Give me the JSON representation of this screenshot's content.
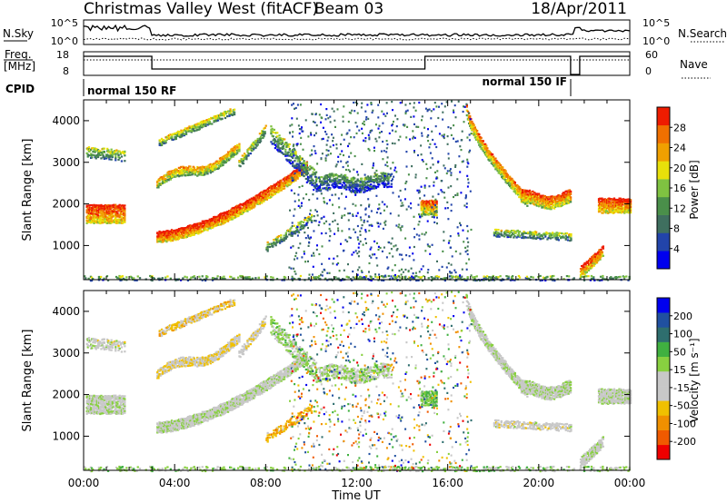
{
  "header": {
    "title": "Christmas Valley West (fitACF)",
    "beam": "Beam 03",
    "date": "18/Apr/2011"
  },
  "noise_panel": {
    "left_label": "N.Sky",
    "right_label": "N.Search",
    "left_ticks": [
      "10^5",
      "10^0"
    ],
    "right_ticks": [
      "10^5",
      "10^0"
    ]
  },
  "freq_panel": {
    "left_label_1": "Freq.",
    "left_label_2": "[MHz]",
    "right_label": "Nave",
    "left_ticks": [
      "18",
      "8"
    ],
    "right_ticks": [
      "60",
      "0"
    ]
  },
  "cpid": {
    "label": "CPID",
    "modes": [
      "normal 150 RF",
      "normal 150 IF"
    ]
  },
  "colorbars": {
    "power": {
      "title": "Power [dB]",
      "colors": [
        "#0000ee",
        "#2244aa",
        "#3f6f5f",
        "#4a8f4a",
        "#7fc241",
        "#e8e00a",
        "#f0a000",
        "#f07000",
        "#ee1c00"
      ],
      "ticks": [
        "4",
        "8",
        "12",
        "16",
        "20",
        "24",
        "28"
      ]
    },
    "velocity": {
      "title": "Velocity [m s⁻¹]",
      "colors": [
        "#ee0000",
        "#f05a00",
        "#f09000",
        "#f0c000",
        "#c8c8c8",
        "#c8c8c8",
        "#88d040",
        "#40b040",
        "#2e6e6e",
        "#2050a0",
        "#0000ee"
      ],
      "ticks": [
        "-200",
        "-100",
        "-50",
        "-15",
        "15",
        "50",
        "100",
        "200"
      ]
    }
  },
  "chart_data": [
    {
      "type": "heatmap",
      "name": "power",
      "xlabel": "",
      "ylabel": "Slant Range [km]",
      "xlim": [
        "00:00",
        "24:00"
      ],
      "ylim": [
        180,
        4500
      ],
      "x_ticks": [
        "00:00",
        "04:00",
        "08:00",
        "12:00",
        "16:00",
        "20:00",
        "00:00"
      ],
      "y_ticks": [
        1000,
        2000,
        3000,
        4000
      ],
      "color_scale_db": [
        0,
        32
      ]
    },
    {
      "type": "heatmap",
      "name": "velocity",
      "xlabel": "Time UT",
      "ylabel": "Slant Range [km]",
      "xlim": [
        "00:00",
        "24:00"
      ],
      "ylim": [
        180,
        4500
      ],
      "x_ticks": [
        "00:00",
        "04:00",
        "08:00",
        "12:00",
        "16:00",
        "20:00",
        "00:00"
      ],
      "y_ticks": [
        1000,
        2000,
        3000,
        4000
      ],
      "color_scale_ms": [
        -250,
        250
      ]
    }
  ]
}
